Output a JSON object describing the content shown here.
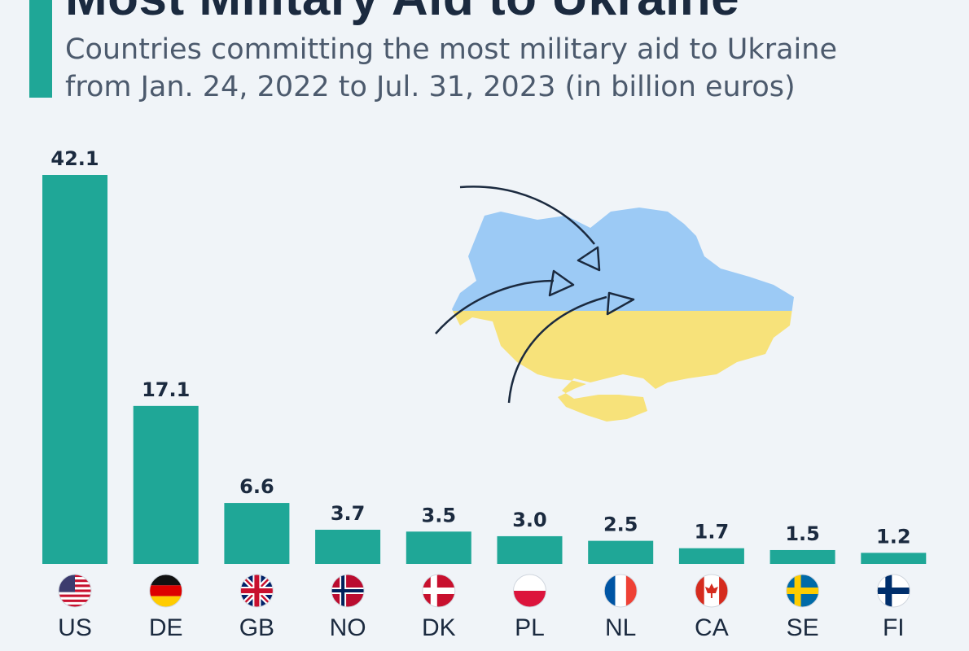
{
  "header": {
    "title": "Most Military Aid to Ukraine",
    "subtitle_line1": "Countries committing the most military aid to Ukraine",
    "subtitle_line2": "from Jan. 24, 2022 to Jul. 31, 2023 (in billion euros)"
  },
  "colors": {
    "bar": "#1fa797",
    "accent": "#1fa797",
    "map_top": "#9ccaf5",
    "map_bottom": "#f7e27a",
    "arrow": "#1b2a3f"
  },
  "chart_data": {
    "type": "bar",
    "title": "Most Military Aid to Ukraine",
    "subtitle": "Countries committing the most military aid to Ukraine from Jan. 24, 2022 to Jul. 31, 2023 (in billion euros)",
    "categories": [
      "US",
      "DE",
      "GB",
      "NO",
      "DK",
      "PL",
      "NL",
      "CA",
      "SE",
      "FI"
    ],
    "values": [
      42.1,
      17.1,
      6.6,
      3.7,
      3.5,
      3.0,
      2.5,
      1.7,
      1.5,
      1.2
    ],
    "value_labels": [
      "42.1",
      "17.1",
      "6.6",
      "3.7",
      "3.5",
      "3.0",
      "2.5",
      "1.7",
      "1.5",
      "1.2"
    ],
    "flags": [
      "us-flag-icon",
      "de-flag-icon",
      "gb-flag-icon",
      "no-flag-icon",
      "dk-flag-icon",
      "pl-flag-icon",
      "nl-flag-icon",
      "ca-flag-icon",
      "se-flag-icon",
      "fi-flag-icon"
    ],
    "xlabel": "",
    "ylabel": "",
    "ylim": [
      0,
      42.1
    ],
    "grid": false,
    "legend": "none"
  }
}
